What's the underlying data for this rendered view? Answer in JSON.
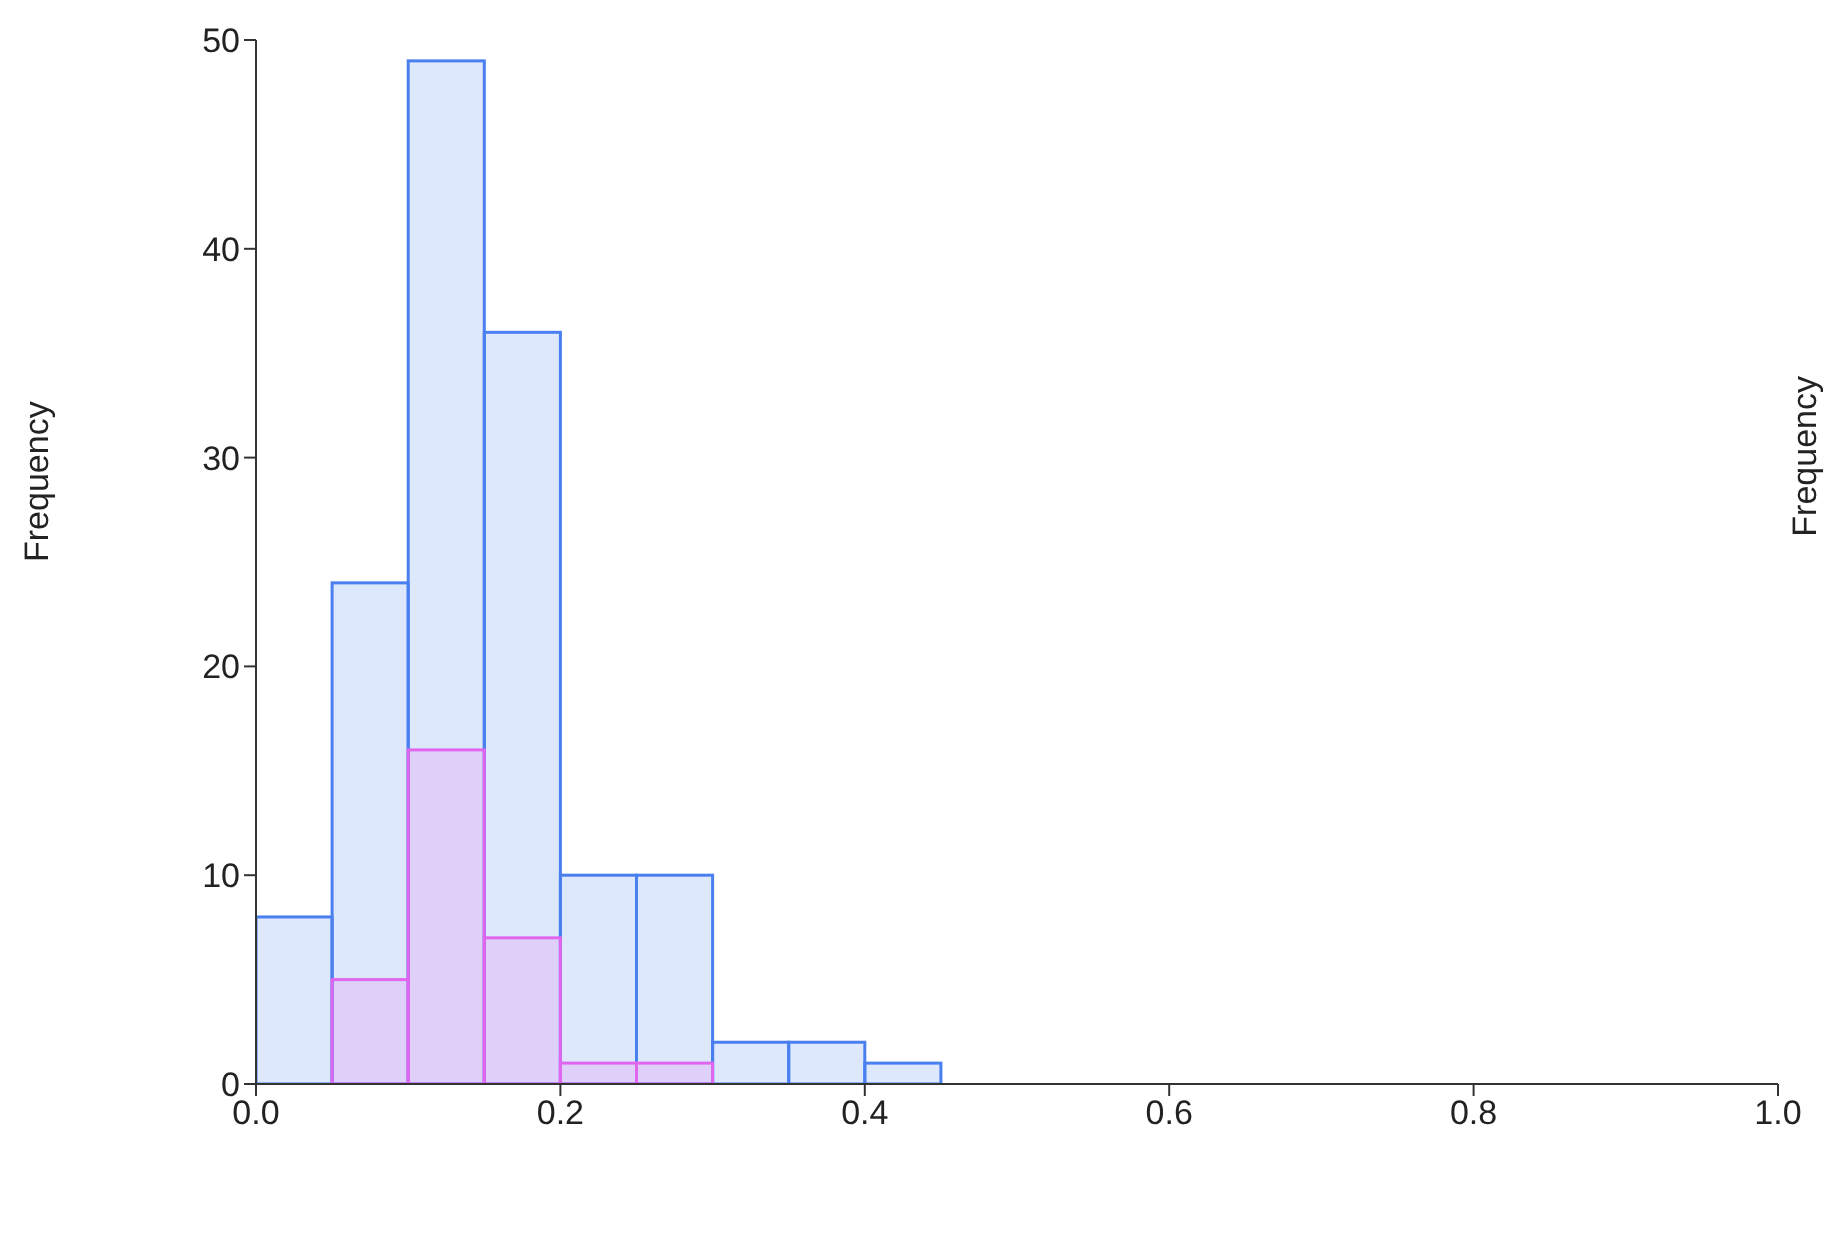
{
  "chart_data": {
    "type": "histogram",
    "ylabel": "Frequency",
    "annotations": [
      "Frequency"
    ],
    "bins": [
      0,
      0.05,
      0.1,
      0.15,
      0.2,
      0.25,
      0.3,
      0.35,
      0.4,
      0.45,
      0.5,
      0.55,
      0.6,
      0.65,
      0.7,
      0.75,
      0.8,
      0.85,
      0.9,
      0.95,
      1.0
    ],
    "series": [
      {
        "color": "#4a7ff0",
        "values": [
          8,
          24,
          49,
          36,
          10,
          10,
          2,
          2,
          1,
          0,
          0,
          0,
          0,
          0,
          0,
          0,
          0,
          0,
          0,
          0
        ]
      },
      {
        "color": "#e066f0",
        "values": [
          0,
          5,
          16,
          7,
          1,
          1,
          0,
          0,
          0,
          0,
          0,
          0,
          0,
          0,
          0,
          0,
          0,
          0,
          0,
          0
        ]
      }
    ],
    "xlim": [
      0,
      1
    ],
    "xticks": [
      {
        "value": 0,
        "label": "0.0"
      },
      0.2,
      0.4,
      0.6,
      0.8,
      {
        "value": 1,
        "label": "1.0"
      }
    ],
    "ylim": [
      0,
      50
    ],
    "yticks": [
      0,
      10,
      20,
      30,
      40,
      50
    ],
    "grid": false,
    "legend": false
  }
}
